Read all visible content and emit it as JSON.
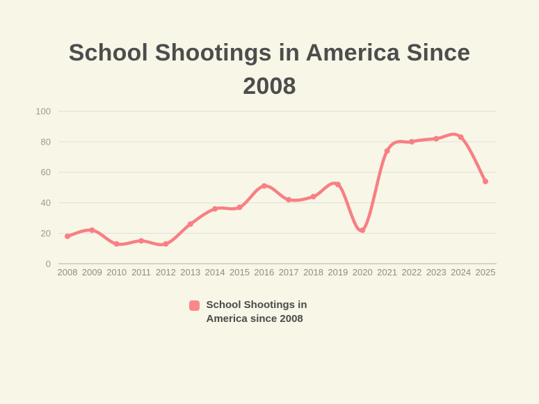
{
  "page": {
    "background_color": "#f7f6e7"
  },
  "title": {
    "text": "School Shootings in America Since 2008",
    "color": "#4d4d4d"
  },
  "legend": {
    "label": "School Shootings in America since 2008",
    "swatch_color": "#f9888c"
  },
  "chart_data": {
    "type": "line",
    "title": "School Shootings in America Since 2008",
    "categories": [
      "2008",
      "2009",
      "2010",
      "2011",
      "2012",
      "2013",
      "2014",
      "2015",
      "2016",
      "2017",
      "2018",
      "2019",
      "2020",
      "2021",
      "2022",
      "2023",
      "2024",
      "2025"
    ],
    "series": [
      {
        "name": "School Shootings in America since 2008",
        "values": [
          18,
          22,
          13,
          15,
          13,
          26,
          36,
          37,
          51,
          42,
          44,
          52,
          22,
          74,
          80,
          82,
          83,
          54
        ],
        "color": "#f87f84"
      }
    ],
    "xlabel": "",
    "ylabel": "",
    "ylim": [
      0,
      100
    ],
    "yticks": [
      0,
      20,
      40,
      60,
      80,
      100
    ],
    "grid": true,
    "smooth": true,
    "point_markers": true,
    "legend_position": "bottom",
    "gridline_color": "#e0dfd6",
    "axis_line_color": "#c6c5bc",
    "tick_label_color": "#9b9a91"
  }
}
